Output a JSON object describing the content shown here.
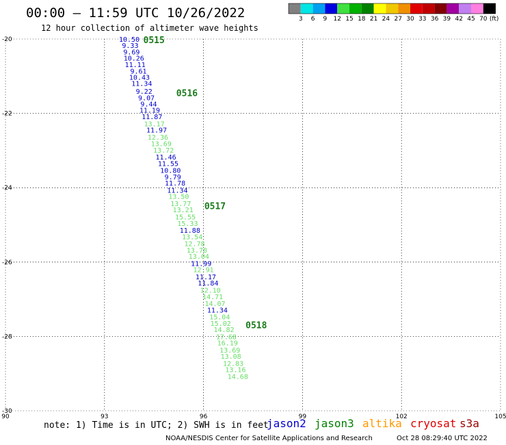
{
  "title": "00:00 – 11:59 UTC 10/26/2022",
  "subtitle": "12 hour collection of altimeter wave heights",
  "color_scale": {
    "labels": [
      "3",
      "6",
      "9",
      "12",
      "15",
      "18",
      "21",
      "24",
      "27",
      "30",
      "33",
      "36",
      "39",
      "42",
      "45",
      "70"
    ],
    "unit": "(ft)",
    "colors": [
      "#808080",
      "#00e5e5",
      "#00a0f0",
      "#0000e0",
      "#40e040",
      "#00b000",
      "#008000",
      "#ffff00",
      "#f0c800",
      "#f09000",
      "#e00000",
      "#c00000",
      "#800000",
      "#a000a0",
      "#c080f0",
      "#ff80e0",
      "#000000"
    ]
  },
  "note": "note:  1) Time is in UTC; 2) SWH is in feet",
  "satellites": [
    {
      "name": "jason2",
      "color": "#0000d0"
    },
    {
      "name": "jason3",
      "color": "#008000"
    },
    {
      "name": "altika",
      "color": "#ff9900"
    },
    {
      "name": "cryosat",
      "color": "#e00000"
    },
    {
      "name": "s3a",
      "color": "#9b0000"
    }
  ],
  "credit": "NOAA/NESDIS Center for Satellite Applications and Research",
  "timestamp": "Oct 28 08:29:40 UTC 2022",
  "chart_data": {
    "type": "scatter",
    "x_ticks": [
      "90",
      "93",
      "96",
      "99",
      "102",
      "105"
    ],
    "y_ticks": [
      "-20",
      "-22",
      "-24",
      "-26",
      "-28",
      "-30"
    ],
    "xlim": [
      90,
      105
    ],
    "ylim": [
      -30,
      -20
    ],
    "grid": true,
    "colors": {
      "dark": "#0000cc",
      "light": "#66dd66"
    },
    "points": [
      {
        "lon": 93.75,
        "lat": -20.0,
        "v": "10.50",
        "c": "dark"
      },
      {
        "lon": 93.78,
        "lat": -20.17,
        "v": "9.33",
        "c": "dark"
      },
      {
        "lon": 93.82,
        "lat": -20.34,
        "v": "9.69",
        "c": "dark"
      },
      {
        "lon": 93.89,
        "lat": -20.51,
        "v": "10.26",
        "c": "dark"
      },
      {
        "lon": 93.93,
        "lat": -20.68,
        "v": "11.11",
        "c": "dark"
      },
      {
        "lon": 94.03,
        "lat": -20.86,
        "v": "9.61",
        "c": "dark"
      },
      {
        "lon": 94.06,
        "lat": -21.02,
        "v": "10.43",
        "c": "dark"
      },
      {
        "lon": 94.13,
        "lat": -21.19,
        "v": "11.34",
        "c": "dark"
      },
      {
        "lon": 94.2,
        "lat": -21.4,
        "v": "9.22",
        "c": "dark"
      },
      {
        "lon": 94.27,
        "lat": -21.57,
        "v": "9.07",
        "c": "dark"
      },
      {
        "lon": 94.34,
        "lat": -21.74,
        "v": "9.44",
        "c": "dark"
      },
      {
        "lon": 94.37,
        "lat": -21.91,
        "v": "11.19",
        "c": "dark"
      },
      {
        "lon": 94.44,
        "lat": -22.08,
        "v": "11.87",
        "c": "dark"
      },
      {
        "lon": 94.51,
        "lat": -22.27,
        "v": "13.17",
        "c": "light"
      },
      {
        "lon": 94.58,
        "lat": -22.44,
        "v": "11.97",
        "c": "dark"
      },
      {
        "lon": 94.62,
        "lat": -22.63,
        "v": "12.36",
        "c": "light"
      },
      {
        "lon": 94.72,
        "lat": -22.81,
        "v": "13.69",
        "c": "light"
      },
      {
        "lon": 94.79,
        "lat": -22.98,
        "v": "13.72",
        "c": "light"
      },
      {
        "lon": 94.86,
        "lat": -23.17,
        "v": "11.46",
        "c": "dark"
      },
      {
        "lon": 94.93,
        "lat": -23.34,
        "v": "11.55",
        "c": "dark"
      },
      {
        "lon": 95.0,
        "lat": -23.53,
        "v": "10.80",
        "c": "dark"
      },
      {
        "lon": 95.07,
        "lat": -23.7,
        "v": "9.79",
        "c": "dark"
      },
      {
        "lon": 95.14,
        "lat": -23.87,
        "v": "11.78",
        "c": "dark"
      },
      {
        "lon": 95.21,
        "lat": -24.06,
        "v": "11.34",
        "c": "dark"
      },
      {
        "lon": 95.25,
        "lat": -24.23,
        "v": "13.50",
        "c": "light"
      },
      {
        "lon": 95.31,
        "lat": -24.42,
        "v": "13.77",
        "c": "light"
      },
      {
        "lon": 95.38,
        "lat": -24.59,
        "v": "13.21",
        "c": "light"
      },
      {
        "lon": 95.45,
        "lat": -24.78,
        "v": "15.55",
        "c": "light"
      },
      {
        "lon": 95.52,
        "lat": -24.95,
        "v": "15.33",
        "c": "light"
      },
      {
        "lon": 95.59,
        "lat": -25.14,
        "v": "11.88",
        "c": "dark"
      },
      {
        "lon": 95.66,
        "lat": -25.31,
        "v": "13.54",
        "c": "light"
      },
      {
        "lon": 95.73,
        "lat": -25.5,
        "v": "12.78",
        "c": "light"
      },
      {
        "lon": 95.8,
        "lat": -25.67,
        "v": "13.78",
        "c": "light"
      },
      {
        "lon": 95.86,
        "lat": -25.84,
        "v": "13.04",
        "c": "light"
      },
      {
        "lon": 95.93,
        "lat": -26.03,
        "v": "11.99",
        "c": "dark"
      },
      {
        "lon": 96.0,
        "lat": -26.2,
        "v": "12.91",
        "c": "light"
      },
      {
        "lon": 96.07,
        "lat": -26.39,
        "v": "11.17",
        "c": "dark"
      },
      {
        "lon": 96.14,
        "lat": -26.56,
        "v": "11.84",
        "c": "dark"
      },
      {
        "lon": 96.21,
        "lat": -26.75,
        "v": "12.10",
        "c": "light"
      },
      {
        "lon": 96.28,
        "lat": -26.92,
        "v": "14.71",
        "c": "light"
      },
      {
        "lon": 96.35,
        "lat": -27.11,
        "v": "14.07",
        "c": "light"
      },
      {
        "lon": 96.42,
        "lat": -27.28,
        "v": "11.34",
        "c": "dark"
      },
      {
        "lon": 96.49,
        "lat": -27.47,
        "v": "15.04",
        "c": "light"
      },
      {
        "lon": 96.52,
        "lat": -27.64,
        "v": "15.02",
        "c": "light"
      },
      {
        "lon": 96.62,
        "lat": -27.81,
        "v": "14.82",
        "c": "light"
      },
      {
        "lon": 96.69,
        "lat": -28.0,
        "v": "17.68",
        "c": "light"
      },
      {
        "lon": 96.73,
        "lat": -28.17,
        "v": "16.19",
        "c": "light"
      },
      {
        "lon": 96.8,
        "lat": -28.36,
        "v": "13.69",
        "c": "light"
      },
      {
        "lon": 96.83,
        "lat": -28.53,
        "v": "13.08",
        "c": "light"
      },
      {
        "lon": 96.9,
        "lat": -28.72,
        "v": "12.83",
        "c": "light"
      },
      {
        "lon": 96.97,
        "lat": -28.89,
        "v": "13.16",
        "c": "light"
      },
      {
        "lon": 97.04,
        "lat": -29.07,
        "v": "14.68",
        "c": "light"
      }
    ],
    "passes": [
      {
        "lon": 94.5,
        "lat": -20.02,
        "label": "0515"
      },
      {
        "lon": 95.5,
        "lat": -21.45,
        "label": "0516"
      },
      {
        "lon": 96.35,
        "lat": -24.48,
        "label": "0517"
      },
      {
        "lon": 97.6,
        "lat": -27.69,
        "label": "0518"
      }
    ]
  }
}
